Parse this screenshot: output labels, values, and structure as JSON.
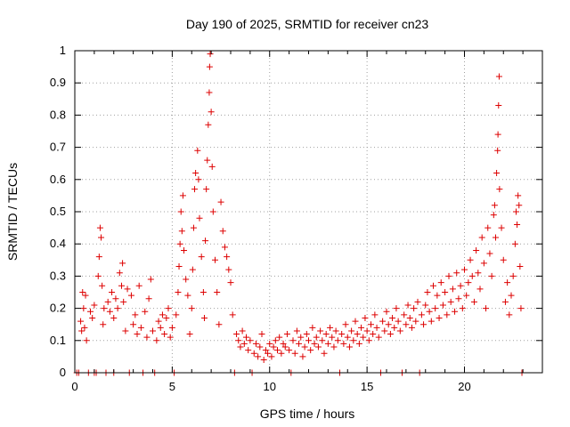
{
  "chart_data": {
    "type": "scatter",
    "title": "Day 190 of 2025, SRMTID for receiver cn23",
    "xlabel": "GPS time / hours",
    "ylabel": "SRMTID / TECUs",
    "xlim": [
      0,
      24
    ],
    "ylim": [
      0,
      1
    ],
    "xticks": [
      0,
      5,
      10,
      15,
      20
    ],
    "yticks": [
      0,
      0.1,
      0.2,
      0.3,
      0.4,
      0.5,
      0.6,
      0.7,
      0.8,
      0.9,
      1
    ],
    "grid": true,
    "marker": "plus",
    "series": [
      {
        "name": "cn23",
        "color": "#dd0000",
        "points": [
          [
            0.1,
            0.0
          ],
          [
            0.2,
            0.0
          ],
          [
            0.3,
            0.16
          ],
          [
            0.35,
            0.13
          ],
          [
            0.4,
            0.25
          ],
          [
            0.45,
            0.2
          ],
          [
            0.5,
            0.14
          ],
          [
            0.55,
            0.24
          ],
          [
            0.6,
            0.1
          ],
          [
            0.7,
            0.0
          ],
          [
            0.8,
            0.19
          ],
          [
            0.9,
            0.17
          ],
          [
            1.0,
            0.21
          ],
          [
            1.0,
            0.0
          ],
          [
            1.1,
            0.0
          ],
          [
            1.2,
            0.3
          ],
          [
            1.25,
            0.36
          ],
          [
            1.3,
            0.45
          ],
          [
            1.35,
            0.42
          ],
          [
            1.4,
            0.27
          ],
          [
            1.45,
            0.15
          ],
          [
            1.5,
            0.2
          ],
          [
            1.6,
            0.0
          ],
          [
            1.7,
            0.22
          ],
          [
            1.8,
            0.19
          ],
          [
            1.9,
            0.25
          ],
          [
            2.0,
            0.17
          ],
          [
            2.0,
            0.0
          ],
          [
            2.1,
            0.23
          ],
          [
            2.2,
            0.2
          ],
          [
            2.3,
            0.31
          ],
          [
            2.4,
            0.27
          ],
          [
            2.45,
            0.34
          ],
          [
            2.5,
            0.22
          ],
          [
            2.6,
            0.13
          ],
          [
            2.7,
            0.26
          ],
          [
            2.8,
            0.0
          ],
          [
            2.9,
            0.24
          ],
          [
            3.0,
            0.15
          ],
          [
            3.1,
            0.18
          ],
          [
            3.2,
            0.12
          ],
          [
            3.3,
            0.27
          ],
          [
            3.4,
            0.14
          ],
          [
            3.5,
            0.0
          ],
          [
            3.6,
            0.19
          ],
          [
            3.7,
            0.11
          ],
          [
            3.8,
            0.23
          ],
          [
            3.9,
            0.29
          ],
          [
            4.0,
            0.13
          ],
          [
            4.1,
            0.0
          ],
          [
            4.2,
            0.1
          ],
          [
            4.3,
            0.16
          ],
          [
            4.4,
            0.14
          ],
          [
            4.5,
            0.18
          ],
          [
            4.6,
            0.12
          ],
          [
            4.7,
            0.17
          ],
          [
            4.8,
            0.2
          ],
          [
            4.9,
            0.11
          ],
          [
            5.0,
            0.14
          ],
          [
            5.1,
            0.0
          ],
          [
            5.2,
            0.18
          ],
          [
            5.3,
            0.25
          ],
          [
            5.35,
            0.33
          ],
          [
            5.4,
            0.4
          ],
          [
            5.45,
            0.5
          ],
          [
            5.5,
            0.44
          ],
          [
            5.55,
            0.55
          ],
          [
            5.6,
            0.38
          ],
          [
            5.7,
            0.29
          ],
          [
            5.8,
            0.24
          ],
          [
            5.9,
            0.12
          ],
          [
            6.0,
            0.2
          ],
          [
            6.05,
            0.32
          ],
          [
            6.1,
            0.45
          ],
          [
            6.15,
            0.57
          ],
          [
            6.2,
            0.62
          ],
          [
            6.3,
            0.69
          ],
          [
            6.35,
            0.6
          ],
          [
            6.4,
            0.48
          ],
          [
            6.5,
            0.36
          ],
          [
            6.6,
            0.25
          ],
          [
            6.65,
            0.17
          ],
          [
            6.7,
            0.41
          ],
          [
            6.75,
            0.57
          ],
          [
            6.8,
            0.66
          ],
          [
            6.85,
            0.77
          ],
          [
            6.9,
            0.87
          ],
          [
            6.92,
            0.95
          ],
          [
            6.95,
            0.99
          ],
          [
            7.0,
            0.81
          ],
          [
            7.05,
            0.64
          ],
          [
            7.1,
            0.5
          ],
          [
            7.2,
            0.35
          ],
          [
            7.3,
            0.25
          ],
          [
            7.4,
            0.15
          ],
          [
            7.5,
            0.53
          ],
          [
            7.6,
            0.44
          ],
          [
            7.7,
            0.39
          ],
          [
            7.8,
            0.36
          ],
          [
            7.9,
            0.32
          ],
          [
            8.0,
            0.28
          ],
          [
            8.1,
            0.18
          ],
          [
            8.2,
            0.0
          ],
          [
            8.3,
            0.12
          ],
          [
            8.4,
            0.1
          ],
          [
            8.5,
            0.08
          ],
          [
            8.6,
            0.13
          ],
          [
            8.7,
            0.09
          ],
          [
            8.8,
            0.11
          ],
          [
            8.9,
            0.07
          ],
          [
            9.0,
            0.1
          ],
          [
            9.1,
            0.0
          ],
          [
            9.2,
            0.06
          ],
          [
            9.3,
            0.09
          ],
          [
            9.4,
            0.05
          ],
          [
            9.5,
            0.08
          ],
          [
            9.6,
            0.12
          ],
          [
            9.7,
            0.04
          ],
          [
            9.8,
            0.07
          ],
          [
            9.9,
            0.06
          ],
          [
            10.0,
            0.09
          ],
          [
            10.1,
            0.05
          ],
          [
            10.2,
            0.08
          ],
          [
            10.3,
            0.1
          ],
          [
            10.4,
            0.07
          ],
          [
            10.5,
            0.11
          ],
          [
            10.6,
            0.06
          ],
          [
            10.7,
            0.09
          ],
          [
            10.8,
            0.08
          ],
          [
            10.9,
            0.12
          ],
          [
            11.0,
            0.07
          ],
          [
            11.1,
            0.0
          ],
          [
            11.2,
            0.1
          ],
          [
            11.3,
            0.06
          ],
          [
            11.4,
            0.13
          ],
          [
            11.5,
            0.09
          ],
          [
            11.6,
            0.11
          ],
          [
            11.7,
            0.05
          ],
          [
            11.8,
            0.08
          ],
          [
            11.9,
            0.12
          ],
          [
            12.0,
            0.1
          ],
          [
            12.1,
            0.07
          ],
          [
            12.2,
            0.14
          ],
          [
            12.3,
            0.09
          ],
          [
            12.4,
            0.11
          ],
          [
            12.5,
            0.08
          ],
          [
            12.6,
            0.13
          ],
          [
            12.7,
            0.1
          ],
          [
            12.8,
            0.06
          ],
          [
            12.9,
            0.12
          ],
          [
            13.0,
            0.09
          ],
          [
            13.1,
            0.14
          ],
          [
            13.2,
            0.11
          ],
          [
            13.3,
            0.08
          ],
          [
            13.4,
            0.13
          ],
          [
            13.5,
            0.1
          ],
          [
            13.6,
            0.0
          ],
          [
            13.7,
            0.12
          ],
          [
            13.8,
            0.09
          ],
          [
            13.9,
            0.15
          ],
          [
            14.0,
            0.11
          ],
          [
            14.1,
            0.08
          ],
          [
            14.2,
            0.13
          ],
          [
            14.3,
            0.1
          ],
          [
            14.4,
            0.16
          ],
          [
            14.5,
            0.12
          ],
          [
            14.6,
            0.09
          ],
          [
            14.7,
            0.14
          ],
          [
            14.8,
            0.11
          ],
          [
            14.9,
            0.17
          ],
          [
            15.0,
            0.13
          ],
          [
            15.1,
            0.1
          ],
          [
            15.2,
            0.15
          ],
          [
            15.3,
            0.12
          ],
          [
            15.4,
            0.18
          ],
          [
            15.5,
            0.14
          ],
          [
            15.6,
            0.11
          ],
          [
            15.7,
            0.0
          ],
          [
            15.8,
            0.16
          ],
          [
            15.9,
            0.13
          ],
          [
            16.0,
            0.19
          ],
          [
            16.1,
            0.15
          ],
          [
            16.2,
            0.12
          ],
          [
            16.3,
            0.17
          ],
          [
            16.4,
            0.14
          ],
          [
            16.5,
            0.2
          ],
          [
            16.6,
            0.16
          ],
          [
            16.7,
            0.13
          ],
          [
            16.8,
            0.0
          ],
          [
            16.9,
            0.18
          ],
          [
            17.0,
            0.15
          ],
          [
            17.1,
            0.21
          ],
          [
            17.2,
            0.17
          ],
          [
            17.3,
            0.14
          ],
          [
            17.4,
            0.2
          ],
          [
            17.5,
            0.16
          ],
          [
            17.6,
            0.22
          ],
          [
            17.7,
            0.0
          ],
          [
            17.8,
            0.18
          ],
          [
            17.9,
            0.15
          ],
          [
            18.0,
            0.21
          ],
          [
            18.1,
            0.25
          ],
          [
            18.2,
            0.19
          ],
          [
            18.3,
            0.16
          ],
          [
            18.4,
            0.27
          ],
          [
            18.5,
            0.2
          ],
          [
            18.6,
            0.24
          ],
          [
            18.7,
            0.17
          ],
          [
            18.8,
            0.28
          ],
          [
            18.9,
            0.21
          ],
          [
            19.0,
            0.25
          ],
          [
            19.1,
            0.18
          ],
          [
            19.2,
            0.3
          ],
          [
            19.3,
            0.22
          ],
          [
            19.4,
            0.26
          ],
          [
            19.5,
            0.19
          ],
          [
            19.6,
            0.31
          ],
          [
            19.7,
            0.23
          ],
          [
            19.8,
            0.27
          ],
          [
            19.9,
            0.2
          ],
          [
            20.0,
            0.32
          ],
          [
            20.1,
            0.24
          ],
          [
            20.2,
            0.28
          ],
          [
            20.3,
            0.35
          ],
          [
            20.4,
            0.3
          ],
          [
            20.5,
            0.22
          ],
          [
            20.6,
            0.38
          ],
          [
            20.7,
            0.31
          ],
          [
            20.8,
            0.26
          ],
          [
            20.9,
            0.42
          ],
          [
            21.0,
            0.34
          ],
          [
            21.1,
            0.2
          ],
          [
            21.2,
            0.45
          ],
          [
            21.3,
            0.37
          ],
          [
            21.4,
            0.3
          ],
          [
            21.5,
            0.49
          ],
          [
            21.55,
            0.52
          ],
          [
            21.6,
            0.42
          ],
          [
            21.65,
            0.62
          ],
          [
            21.7,
            0.69
          ],
          [
            21.72,
            0.74
          ],
          [
            21.75,
            0.83
          ],
          [
            21.78,
            0.92
          ],
          [
            21.8,
            0.57
          ],
          [
            21.9,
            0.45
          ],
          [
            22.0,
            0.35
          ],
          [
            22.1,
            0.22
          ],
          [
            22.2,
            0.28
          ],
          [
            22.3,
            0.18
          ],
          [
            22.4,
            0.24
          ],
          [
            22.5,
            0.3
          ],
          [
            22.6,
            0.4
          ],
          [
            22.65,
            0.5
          ],
          [
            22.7,
            0.46
          ],
          [
            22.75,
            0.55
          ],
          [
            22.8,
            0.52
          ],
          [
            22.85,
            0.33
          ],
          [
            22.9,
            0.2
          ],
          [
            22.95,
            0.0
          ]
        ]
      }
    ]
  }
}
